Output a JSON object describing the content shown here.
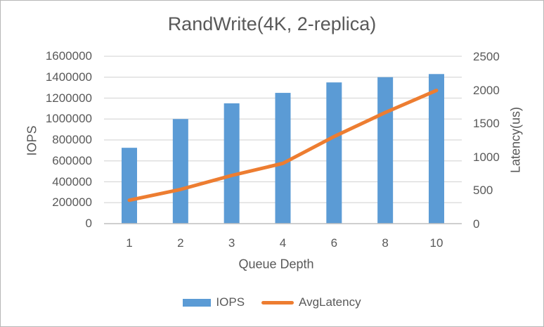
{
  "chart_data": {
    "type": "bar",
    "combo": "bar+line dual-axis",
    "title": "RandWrite(4K, 2-replica)",
    "xlabel": "Queue Depth",
    "categories": [
      "1",
      "2",
      "3",
      "4",
      "6",
      "8",
      "10"
    ],
    "series": [
      {
        "name": "IOPS",
        "type": "bar",
        "axis": "left",
        "color": "#5B9BD5",
        "values": [
          725000,
          1000000,
          1150000,
          1250000,
          1350000,
          1400000,
          1430000
        ]
      },
      {
        "name": "AvgLatency",
        "type": "line",
        "axis": "right",
        "color": "#ED7D31",
        "values": [
          350,
          510,
          720,
          900,
          1300,
          1660,
          1990
        ]
      }
    ],
    "left_axis": {
      "label": "IOPS",
      "min": 0,
      "max": 1600000,
      "tick_step": 200000,
      "ticks": [
        0,
        200000,
        400000,
        600000,
        800000,
        1000000,
        1200000,
        1400000,
        1600000
      ]
    },
    "right_axis": {
      "label": "Latency(us)",
      "min": 0,
      "max": 2500,
      "tick_step": 500,
      "ticks": [
        0,
        500,
        1000,
        1500,
        2000,
        2500
      ]
    },
    "grid": "horizontal only",
    "legend_position": "bottom"
  },
  "colors": {
    "text": "#595959",
    "gridline": "#D9D9D9",
    "axis_line": "#BFBFBF",
    "background": "#FFFFFF"
  }
}
